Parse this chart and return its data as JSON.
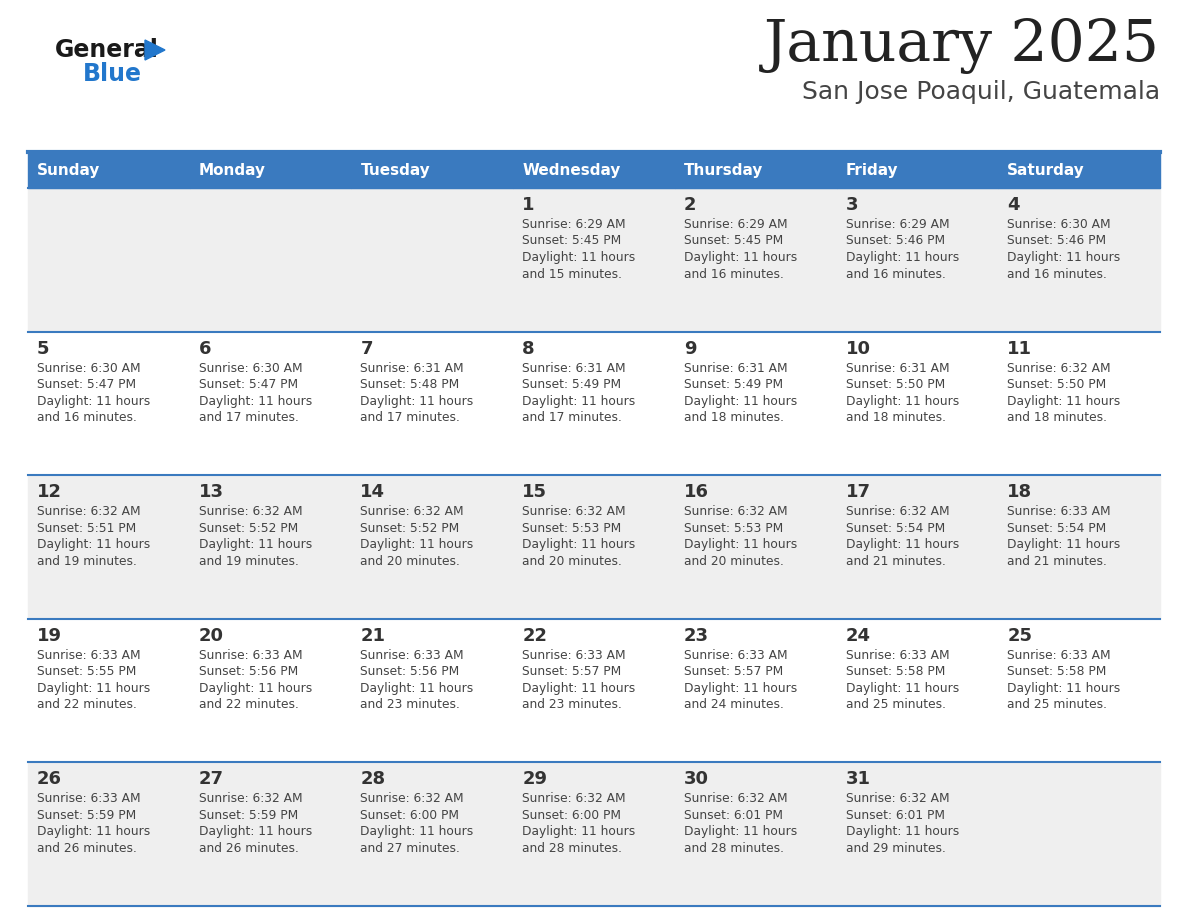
{
  "title": "January 2025",
  "subtitle": "San Jose Poaquil, Guatemala",
  "days_of_week": [
    "Sunday",
    "Monday",
    "Tuesday",
    "Wednesday",
    "Thursday",
    "Friday",
    "Saturday"
  ],
  "header_bg": "#3a7abf",
  "header_text": "#ffffff",
  "row_bg_even": "#efefef",
  "row_bg_odd": "#ffffff",
  "separator_color": "#3a7abf",
  "day_number_color": "#333333",
  "cell_text_color": "#444444",
  "title_color": "#222222",
  "subtitle_color": "#444444",
  "logo_general_color": "#1a1a1a",
  "logo_blue_color": "#2277cc",
  "calendar_data": [
    {
      "day": 1,
      "col": 3,
      "row": 0,
      "sunrise": "6:29 AM",
      "sunset": "5:45 PM",
      "daylight_hours": 11,
      "daylight_minutes": 15
    },
    {
      "day": 2,
      "col": 4,
      "row": 0,
      "sunrise": "6:29 AM",
      "sunset": "5:45 PM",
      "daylight_hours": 11,
      "daylight_minutes": 16
    },
    {
      "day": 3,
      "col": 5,
      "row": 0,
      "sunrise": "6:29 AM",
      "sunset": "5:46 PM",
      "daylight_hours": 11,
      "daylight_minutes": 16
    },
    {
      "day": 4,
      "col": 6,
      "row": 0,
      "sunrise": "6:30 AM",
      "sunset": "5:46 PM",
      "daylight_hours": 11,
      "daylight_minutes": 16
    },
    {
      "day": 5,
      "col": 0,
      "row": 1,
      "sunrise": "6:30 AM",
      "sunset": "5:47 PM",
      "daylight_hours": 11,
      "daylight_minutes": 16
    },
    {
      "day": 6,
      "col": 1,
      "row": 1,
      "sunrise": "6:30 AM",
      "sunset": "5:47 PM",
      "daylight_hours": 11,
      "daylight_minutes": 17
    },
    {
      "day": 7,
      "col": 2,
      "row": 1,
      "sunrise": "6:31 AM",
      "sunset": "5:48 PM",
      "daylight_hours": 11,
      "daylight_minutes": 17
    },
    {
      "day": 8,
      "col": 3,
      "row": 1,
      "sunrise": "6:31 AM",
      "sunset": "5:49 PM",
      "daylight_hours": 11,
      "daylight_minutes": 17
    },
    {
      "day": 9,
      "col": 4,
      "row": 1,
      "sunrise": "6:31 AM",
      "sunset": "5:49 PM",
      "daylight_hours": 11,
      "daylight_minutes": 18
    },
    {
      "day": 10,
      "col": 5,
      "row": 1,
      "sunrise": "6:31 AM",
      "sunset": "5:50 PM",
      "daylight_hours": 11,
      "daylight_minutes": 18
    },
    {
      "day": 11,
      "col": 6,
      "row": 1,
      "sunrise": "6:32 AM",
      "sunset": "5:50 PM",
      "daylight_hours": 11,
      "daylight_minutes": 18
    },
    {
      "day": 12,
      "col": 0,
      "row": 2,
      "sunrise": "6:32 AM",
      "sunset": "5:51 PM",
      "daylight_hours": 11,
      "daylight_minutes": 19
    },
    {
      "day": 13,
      "col": 1,
      "row": 2,
      "sunrise": "6:32 AM",
      "sunset": "5:52 PM",
      "daylight_hours": 11,
      "daylight_minutes": 19
    },
    {
      "day": 14,
      "col": 2,
      "row": 2,
      "sunrise": "6:32 AM",
      "sunset": "5:52 PM",
      "daylight_hours": 11,
      "daylight_minutes": 20
    },
    {
      "day": 15,
      "col": 3,
      "row": 2,
      "sunrise": "6:32 AM",
      "sunset": "5:53 PM",
      "daylight_hours": 11,
      "daylight_minutes": 20
    },
    {
      "day": 16,
      "col": 4,
      "row": 2,
      "sunrise": "6:32 AM",
      "sunset": "5:53 PM",
      "daylight_hours": 11,
      "daylight_minutes": 20
    },
    {
      "day": 17,
      "col": 5,
      "row": 2,
      "sunrise": "6:32 AM",
      "sunset": "5:54 PM",
      "daylight_hours": 11,
      "daylight_minutes": 21
    },
    {
      "day": 18,
      "col": 6,
      "row": 2,
      "sunrise": "6:33 AM",
      "sunset": "5:54 PM",
      "daylight_hours": 11,
      "daylight_minutes": 21
    },
    {
      "day": 19,
      "col": 0,
      "row": 3,
      "sunrise": "6:33 AM",
      "sunset": "5:55 PM",
      "daylight_hours": 11,
      "daylight_minutes": 22
    },
    {
      "day": 20,
      "col": 1,
      "row": 3,
      "sunrise": "6:33 AM",
      "sunset": "5:56 PM",
      "daylight_hours": 11,
      "daylight_minutes": 22
    },
    {
      "day": 21,
      "col": 2,
      "row": 3,
      "sunrise": "6:33 AM",
      "sunset": "5:56 PM",
      "daylight_hours": 11,
      "daylight_minutes": 23
    },
    {
      "day": 22,
      "col": 3,
      "row": 3,
      "sunrise": "6:33 AM",
      "sunset": "5:57 PM",
      "daylight_hours": 11,
      "daylight_minutes": 23
    },
    {
      "day": 23,
      "col": 4,
      "row": 3,
      "sunrise": "6:33 AM",
      "sunset": "5:57 PM",
      "daylight_hours": 11,
      "daylight_minutes": 24
    },
    {
      "day": 24,
      "col": 5,
      "row": 3,
      "sunrise": "6:33 AM",
      "sunset": "5:58 PM",
      "daylight_hours": 11,
      "daylight_minutes": 25
    },
    {
      "day": 25,
      "col": 6,
      "row": 3,
      "sunrise": "6:33 AM",
      "sunset": "5:58 PM",
      "daylight_hours": 11,
      "daylight_minutes": 25
    },
    {
      "day": 26,
      "col": 0,
      "row": 4,
      "sunrise": "6:33 AM",
      "sunset": "5:59 PM",
      "daylight_hours": 11,
      "daylight_minutes": 26
    },
    {
      "day": 27,
      "col": 1,
      "row": 4,
      "sunrise": "6:32 AM",
      "sunset": "5:59 PM",
      "daylight_hours": 11,
      "daylight_minutes": 26
    },
    {
      "day": 28,
      "col": 2,
      "row": 4,
      "sunrise": "6:32 AM",
      "sunset": "6:00 PM",
      "daylight_hours": 11,
      "daylight_minutes": 27
    },
    {
      "day": 29,
      "col": 3,
      "row": 4,
      "sunrise": "6:32 AM",
      "sunset": "6:00 PM",
      "daylight_hours": 11,
      "daylight_minutes": 28
    },
    {
      "day": 30,
      "col": 4,
      "row": 4,
      "sunrise": "6:32 AM",
      "sunset": "6:01 PM",
      "daylight_hours": 11,
      "daylight_minutes": 28
    },
    {
      "day": 31,
      "col": 5,
      "row": 4,
      "sunrise": "6:32 AM",
      "sunset": "6:01 PM",
      "daylight_hours": 11,
      "daylight_minutes": 29
    }
  ]
}
